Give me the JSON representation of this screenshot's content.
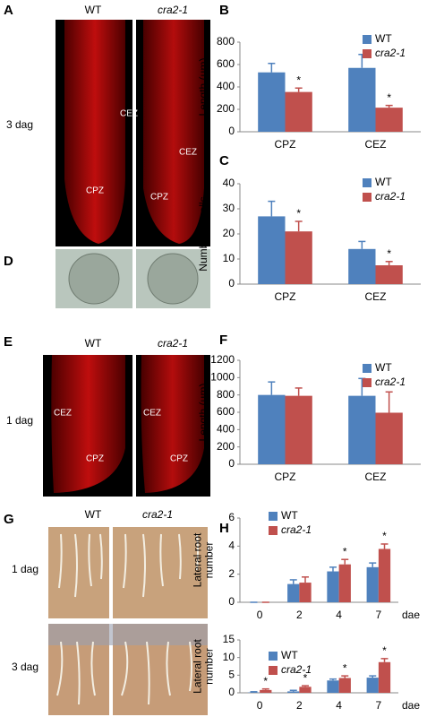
{
  "panels": {
    "A": {
      "letter": "A",
      "columns": [
        "WT",
        "cra2-1"
      ],
      "row_label": "3 dag",
      "zone_labels": [
        "CEZ",
        "CPZ",
        "CEZ",
        "CPZ"
      ]
    },
    "D": {
      "letter": "D"
    },
    "E": {
      "letter": "E",
      "columns": [
        "WT",
        "cra2-1"
      ],
      "row_label": "1 dag",
      "zone_labels": [
        "CEZ",
        "CPZ",
        "CEZ",
        "CPZ"
      ]
    },
    "G": {
      "letter": "G",
      "columns": [
        "WT",
        "cra2-1"
      ],
      "row_labels": [
        "1 dag",
        "3 dag"
      ]
    }
  },
  "chart_data": [
    {
      "type": "bar",
      "panel": "B",
      "ylabel": [
        "Length (µm)"
      ],
      "categories": [
        "CPZ",
        "CEZ"
      ],
      "series": [
        {
          "name": "WT",
          "color": "#4f81bd",
          "values": [
            530,
            570
          ],
          "errors": [
            80,
            120
          ],
          "significance": [
            null,
            null
          ]
        },
        {
          "name": "cra2-1",
          "color": "#c0504d",
          "values": [
            355,
            215
          ],
          "errors": [
            35,
            20
          ],
          "significance": [
            "*",
            "*"
          ]
        }
      ],
      "ylim": [
        0,
        800
      ],
      "yticks": [
        0,
        200,
        400,
        600,
        800
      ]
    },
    {
      "type": "bar",
      "panel": "C",
      "ylabel": [
        "Number of cells"
      ],
      "categories": [
        "CPZ",
        "CEZ"
      ],
      "series": [
        {
          "name": "WT",
          "color": "#4f81bd",
          "values": [
            27,
            14
          ],
          "errors": [
            6,
            3
          ],
          "significance": [
            null,
            null
          ]
        },
        {
          "name": "cra2-1",
          "color": "#c0504d",
          "values": [
            21,
            7.5
          ],
          "errors": [
            4,
            1.5
          ],
          "significance": [
            "*",
            "*"
          ]
        }
      ],
      "ylim": [
        0,
        40
      ],
      "yticks": [
        0,
        10,
        20,
        30,
        40
      ]
    },
    {
      "type": "bar",
      "panel": "F",
      "ylabel": [
        "Length (µm)"
      ],
      "categories": [
        "CPZ",
        "CEZ"
      ],
      "series": [
        {
          "name": "WT",
          "color": "#4f81bd",
          "values": [
            800,
            790
          ],
          "errors": [
            150,
            200
          ],
          "significance": [
            null,
            null
          ]
        },
        {
          "name": "cra2-1",
          "color": "#c0504d",
          "values": [
            790,
            595
          ],
          "errors": [
            90,
            240
          ],
          "significance": [
            null,
            null
          ]
        }
      ],
      "ylim": [
        0,
        1200
      ],
      "yticks": [
        0,
        200,
        400,
        600,
        800,
        1000,
        1200
      ]
    },
    {
      "type": "bar",
      "panel": "H",
      "ylabel": [
        "Lateral root",
        "number"
      ],
      "xlabel": "dae",
      "categories": [
        "0",
        "2",
        "4",
        "7"
      ],
      "series": [
        {
          "name": "WT",
          "color": "#4f81bd",
          "values": [
            0,
            1.3,
            2.2,
            2.5
          ],
          "errors": [
            0,
            0.3,
            0.3,
            0.3
          ],
          "significance": [
            null,
            null,
            null,
            null
          ]
        },
        {
          "name": "cra2-1",
          "color": "#c0504d",
          "values": [
            0,
            1.4,
            2.7,
            3.8
          ],
          "errors": [
            0,
            0.4,
            0.35,
            0.35
          ],
          "significance": [
            null,
            null,
            "*",
            "*"
          ]
        }
      ],
      "ylim": [
        0,
        6
      ],
      "yticks": [
        0,
        2,
        4,
        6
      ]
    },
    {
      "type": "bar",
      "ylabel": [
        "Lateral root",
        "number"
      ],
      "xlabel": "dae",
      "categories": [
        "0",
        "2",
        "4",
        "7"
      ],
      "series": [
        {
          "name": "WT",
          "color": "#4f81bd",
          "values": [
            0.1,
            0.4,
            3.5,
            4.3
          ],
          "errors": [
            0.2,
            0.3,
            0.4,
            0.5
          ],
          "significance": [
            null,
            null,
            null,
            null
          ]
        },
        {
          "name": "cra2-1",
          "color": "#c0504d",
          "values": [
            0.8,
            1.7,
            4.2,
            8.7
          ],
          "errors": [
            0.3,
            0.3,
            0.6,
            1.0
          ],
          "significance": [
            "*",
            "*",
            "*",
            "*"
          ]
        }
      ],
      "ylim": [
        0,
        15
      ],
      "yticks": [
        0,
        5,
        10,
        15
      ]
    }
  ]
}
